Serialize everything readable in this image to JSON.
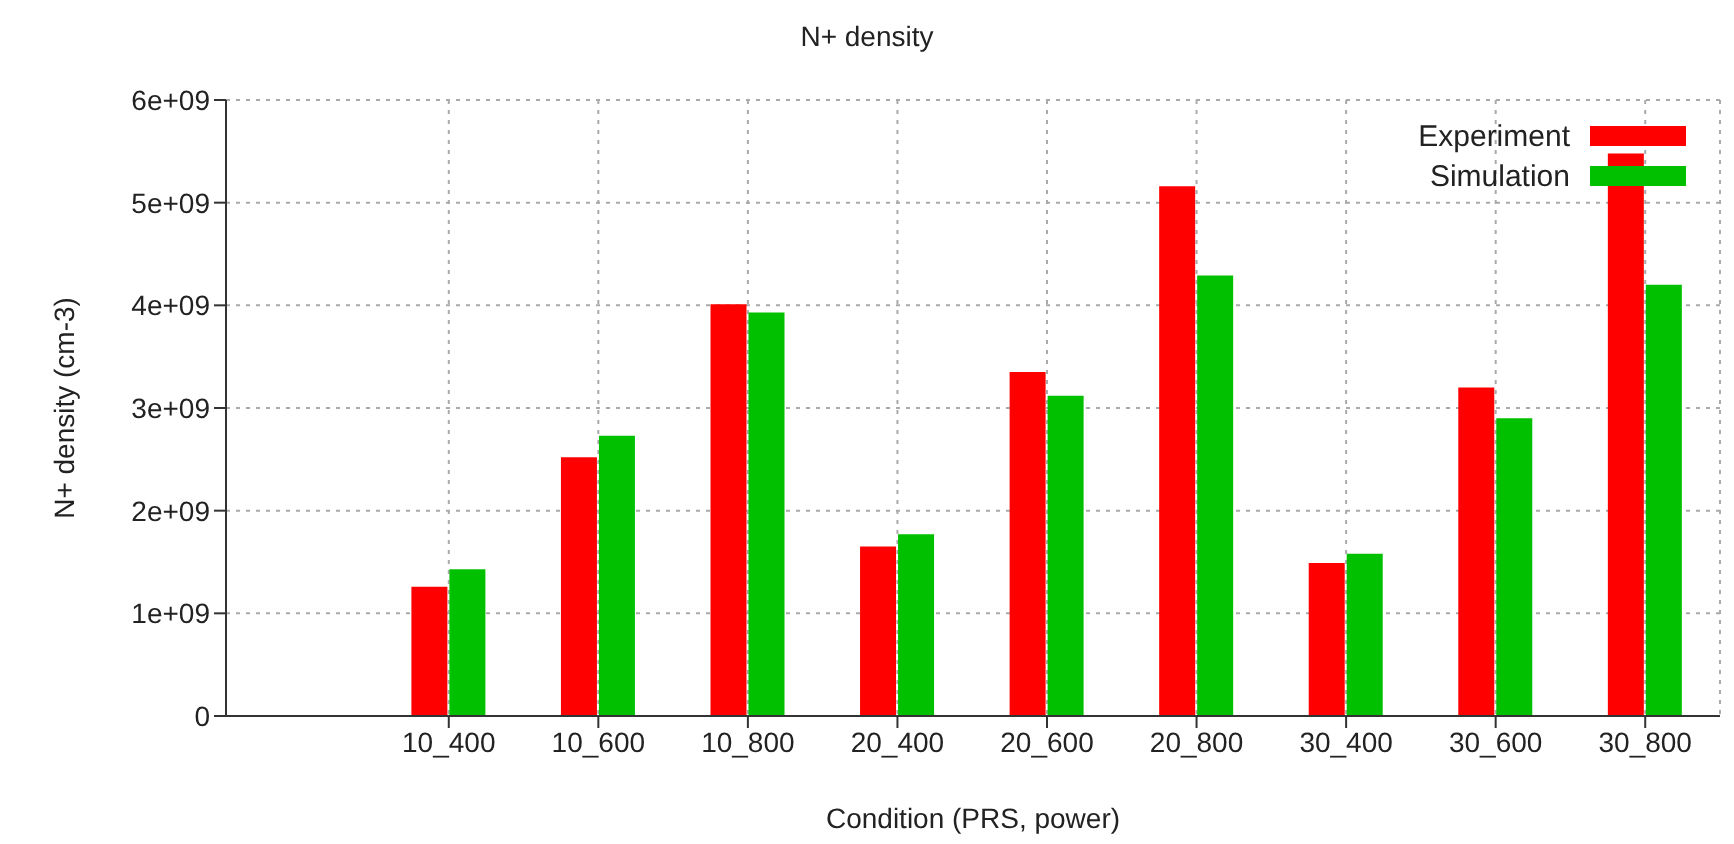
{
  "chart_data": {
    "type": "bar",
    "title": "N+ density",
    "xlabel": "Condition (PRS, power)",
    "ylabel": "N+ density (cm-3)",
    "categories": [
      "10_400",
      "10_600",
      "10_800",
      "20_400",
      "20_600",
      "20_800",
      "30_400",
      "30_600",
      "30_800"
    ],
    "series": [
      {
        "name": "Experiment",
        "color": "#ff0000",
        "values": [
          1260000000.0,
          2520000000.0,
          4010000000.0,
          1650000000.0,
          3350000000.0,
          5160000000.0,
          1490000000.0,
          3200000000.0,
          5480000000.0
        ]
      },
      {
        "name": "Simulation",
        "color": "#00c000",
        "values": [
          1430000000.0,
          2730000000.0,
          3930000000.0,
          1770000000.0,
          3120000000.0,
          4290000000.0,
          1580000000.0,
          2900000000.0,
          4200000000.0
        ]
      }
    ],
    "ylim": [
      0,
      6000000000.0
    ],
    "yticks": [
      0,
      {
        "value": 1000000000.0,
        "label": "1e+09"
      },
      {
        "value": 2000000000.0,
        "label": "2e+09"
      },
      {
        "value": 3000000000.0,
        "label": "3e+09"
      },
      {
        "value": 4000000000.0,
        "label": "4e+09"
      },
      {
        "value": 5000000000.0,
        "label": "5e+09"
      },
      {
        "value": 6000000000.0,
        "label": "6e+09"
      }
    ],
    "grid": true,
    "legend": "top right"
  }
}
